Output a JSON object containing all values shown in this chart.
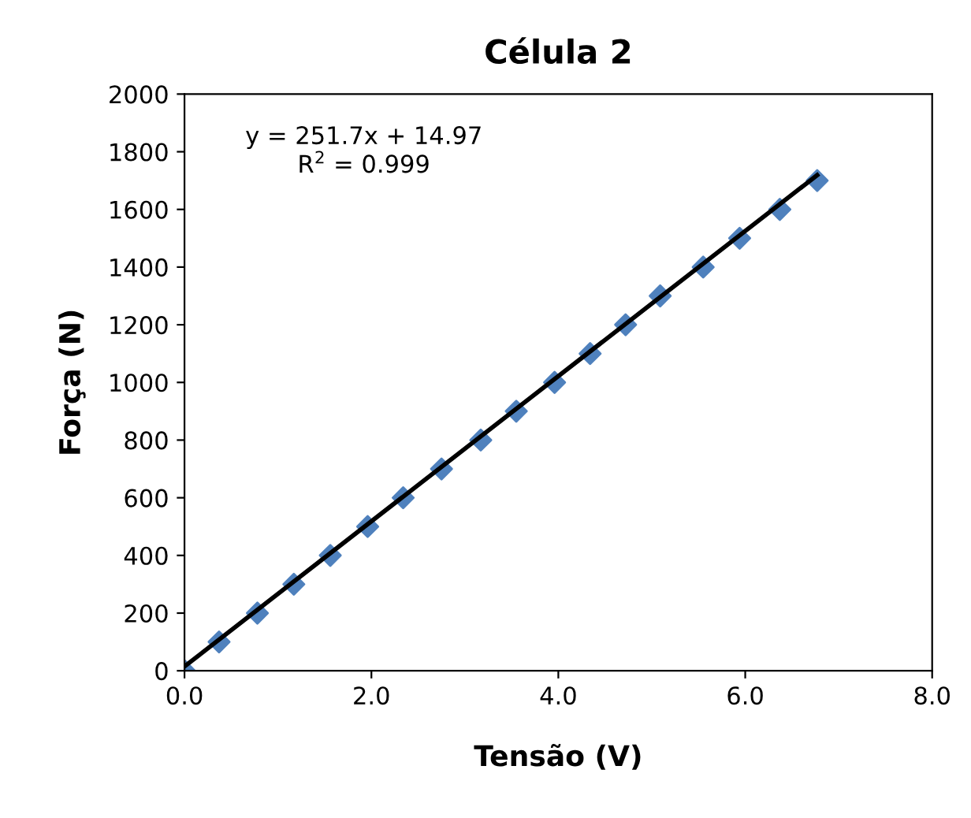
{
  "chart_data": {
    "type": "scatter",
    "title": "Célula 2",
    "xlabel": "Tensão (V)",
    "ylabel": "Força (N)",
    "xlim": [
      0,
      8
    ],
    "xticks": [
      {
        "value": 0,
        "label": "0.0"
      },
      {
        "value": 2,
        "label": "2.0"
      },
      {
        "value": 4,
        "label": "4.0"
      },
      {
        "value": 6,
        "label": "6.0"
      },
      {
        "value": 8,
        "label": "8.0"
      }
    ],
    "ylim": [
      0,
      2000
    ],
    "yticks": [
      0,
      200,
      400,
      600,
      800,
      1000,
      1200,
      1400,
      1600,
      1800,
      2000
    ],
    "grid": false,
    "legend": false,
    "annotations": [
      "y = 251.7x + 14.97\nR$^{2}$ = 0.999"
    ],
    "series": [
      {
        "marker": "diamond",
        "color": "#4f81bd",
        "x": [
          0,
          0.37,
          0.78,
          1.17,
          1.56,
          1.96,
          2.34,
          2.75,
          3.17,
          3.55,
          3.96,
          4.34,
          4.72,
          5.09,
          5.55,
          5.94,
          6.37,
          6.77
        ],
        "values": [
          0,
          100,
          200,
          300,
          400,
          500,
          600,
          700,
          800,
          900,
          1000,
          1100,
          1200,
          1300,
          1400,
          1500,
          1600,
          1700
        ]
      },
      {
        "type": "line",
        "marker": "none",
        "color": "#000000",
        "line_style": "solid",
        "x": [
          0,
          6.77
        ],
        "values": [
          15,
          1719
        ]
      }
    ]
  }
}
